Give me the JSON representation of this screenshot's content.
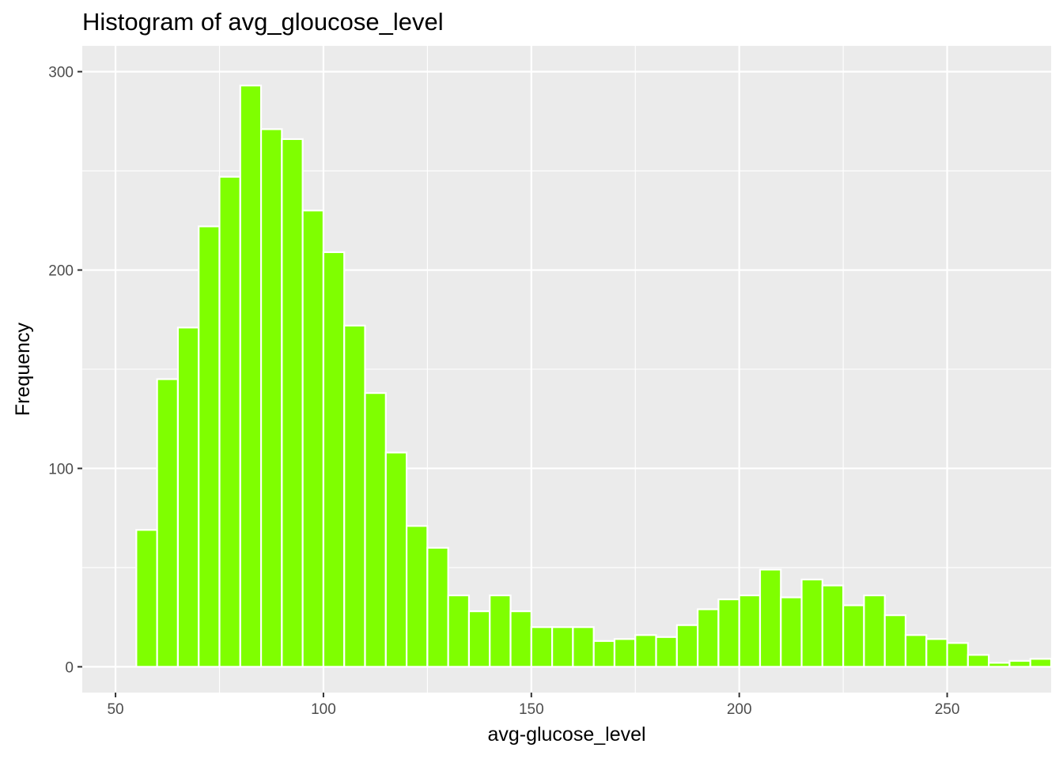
{
  "chart_data": {
    "type": "bar",
    "title": "Histogram of avg_gloucose_level",
    "xlabel": "avg-glucose_level",
    "ylabel": "Frequency",
    "xlim": [
      42,
      275
    ],
    "ylim": [
      -13,
      313
    ],
    "x_ticks": [
      50,
      100,
      150,
      200,
      250
    ],
    "x_tick_labels": [
      "50",
      "100",
      "150",
      "200",
      "250"
    ],
    "y_ticks": [
      0,
      100,
      200,
      300
    ],
    "y_tick_labels": [
      "0",
      "100",
      "200",
      "300"
    ],
    "bin_width": 5,
    "bin_starts": [
      55,
      60,
      65,
      70,
      75,
      80,
      85,
      90,
      95,
      100,
      105,
      110,
      115,
      120,
      125,
      130,
      135,
      140,
      145,
      150,
      155,
      160,
      165,
      170,
      175,
      180,
      185,
      190,
      195,
      200,
      205,
      210,
      215,
      220,
      225,
      230,
      235,
      240,
      245,
      250,
      255,
      260,
      265,
      270
    ],
    "values": [
      69,
      145,
      171,
      222,
      247,
      293,
      271,
      266,
      230,
      209,
      172,
      138,
      108,
      71,
      60,
      36,
      28,
      36,
      28,
      20,
      20,
      20,
      13,
      14,
      16,
      15,
      21,
      29,
      34,
      36,
      49,
      35,
      44,
      41,
      31,
      36,
      26,
      16,
      14,
      12,
      6,
      2,
      3,
      4
    ],
    "bar_fill": "#7fff00",
    "bar_outline": "#ffffff",
    "panel_background": "#ebebeb",
    "grid": true
  }
}
